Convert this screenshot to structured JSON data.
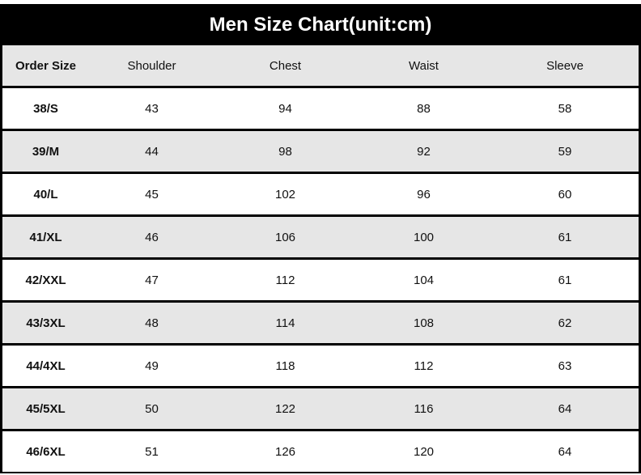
{
  "title": "Men Size Chart(unit:cm)",
  "columns": [
    "Order Size",
    "Shoulder",
    "Chest",
    "Waist",
    "Sleeve"
  ],
  "rows": [
    [
      "38/S",
      "43",
      "94",
      "88",
      "58"
    ],
    [
      "39/M",
      "44",
      "98",
      "92",
      "59"
    ],
    [
      "40/L",
      "45",
      "102",
      "96",
      "60"
    ],
    [
      "41/XL",
      "46",
      "106",
      "100",
      "61"
    ],
    [
      "42/XXL",
      "47",
      "112",
      "104",
      "61"
    ],
    [
      "43/3XL",
      "48",
      "114",
      "108",
      "62"
    ],
    [
      "44/4XL",
      "49",
      "118",
      "112",
      "63"
    ],
    [
      "45/5XL",
      "50",
      "122",
      "116",
      "64"
    ],
    [
      "46/6XL",
      "51",
      "126",
      "120",
      "64"
    ]
  ]
}
